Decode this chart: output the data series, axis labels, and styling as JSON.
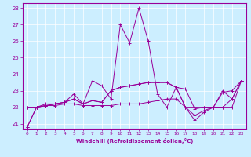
{
  "xlabel": "Windchill (Refroidissement éolien,°C)",
  "background_color": "#cceeff",
  "line_color": "#990099",
  "xlim": [
    -0.5,
    23.5
  ],
  "ylim": [
    20.7,
    28.3
  ],
  "xticks": [
    0,
    1,
    2,
    3,
    4,
    5,
    6,
    7,
    8,
    9,
    10,
    11,
    12,
    13,
    14,
    15,
    16,
    17,
    18,
    19,
    20,
    21,
    22,
    23
  ],
  "yticks": [
    21,
    22,
    23,
    24,
    25,
    26,
    27,
    28
  ],
  "lines": [
    [
      20.8,
      22.0,
      22.2,
      22.2,
      22.3,
      22.8,
      22.2,
      23.6,
      23.3,
      22.5,
      27.0,
      25.9,
      28.0,
      26.0,
      22.8,
      22.0,
      23.2,
      22.0,
      21.2,
      21.7,
      22.0,
      22.9,
      23.0,
      23.6
    ],
    [
      20.8,
      22.0,
      22.1,
      22.1,
      22.2,
      22.2,
      22.1,
      22.1,
      22.1,
      22.1,
      22.2,
      22.2,
      22.2,
      22.3,
      22.4,
      22.5,
      22.5,
      22.0,
      22.0,
      22.0,
      22.0,
      22.0,
      22.0,
      23.6
    ],
    [
      22.0,
      22.0,
      22.1,
      22.2,
      22.3,
      22.5,
      22.2,
      22.4,
      22.3,
      23.0,
      23.2,
      23.3,
      23.4,
      23.5,
      23.5,
      23.5,
      23.2,
      23.1,
      21.9,
      22.0,
      22.0,
      22.0,
      22.5,
      23.6
    ],
    [
      22.0,
      22.0,
      22.1,
      22.2,
      22.3,
      22.5,
      22.2,
      22.4,
      22.3,
      23.0,
      23.2,
      23.3,
      23.4,
      23.5,
      23.5,
      23.5,
      23.2,
      22.0,
      21.5,
      21.8,
      22.0,
      23.0,
      22.5,
      23.6
    ]
  ]
}
